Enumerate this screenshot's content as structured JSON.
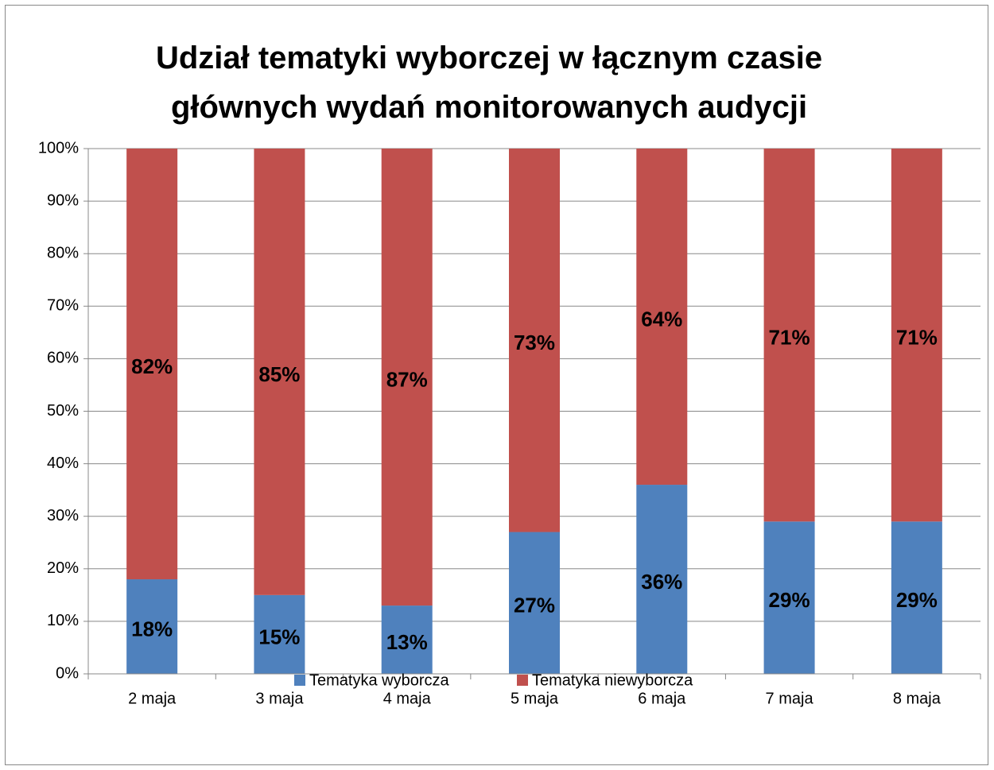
{
  "chart_data": {
    "type": "stacked_bar",
    "title": "Udział tematyki wyborczej w łącznym czasie głównych wydań monitorowanych audycji",
    "categories": [
      "2 maja",
      "3 maja",
      "4 maja",
      "5 maja",
      "6 maja",
      "7 maja",
      "8 maja"
    ],
    "series": [
      {
        "name": "Tematyka wyborcza",
        "color": "#4f81bd",
        "values": [
          18,
          15,
          13,
          27,
          36,
          29,
          29
        ],
        "value_labels": [
          "18%",
          "15%",
          "13%",
          "27%",
          "36%",
          "29%",
          "29%"
        ]
      },
      {
        "name": "Tematyka niewyborcza",
        "color": "#c0504d",
        "values": [
          82,
          85,
          87,
          73,
          64,
          71,
          71
        ],
        "value_labels": [
          "82%",
          "85%",
          "87%",
          "73%",
          "64%",
          "71%",
          "71%"
        ]
      }
    ],
    "ylim": [
      0,
      100
    ],
    "yticks": [
      {
        "value": 0,
        "label": "0%"
      },
      {
        "value": 10,
        "label": "10%"
      },
      {
        "value": 20,
        "label": "20%"
      },
      {
        "value": 30,
        "label": "30%"
      },
      {
        "value": 40,
        "label": "40%"
      },
      {
        "value": 50,
        "label": "50%"
      },
      {
        "value": 60,
        "label": "60%"
      },
      {
        "value": 70,
        "label": "70%"
      },
      {
        "value": 80,
        "label": "80%"
      },
      {
        "value": 90,
        "label": "90%"
      },
      {
        "value": 100,
        "label": "100%"
      }
    ],
    "grid": true,
    "legend": "bottom"
  }
}
